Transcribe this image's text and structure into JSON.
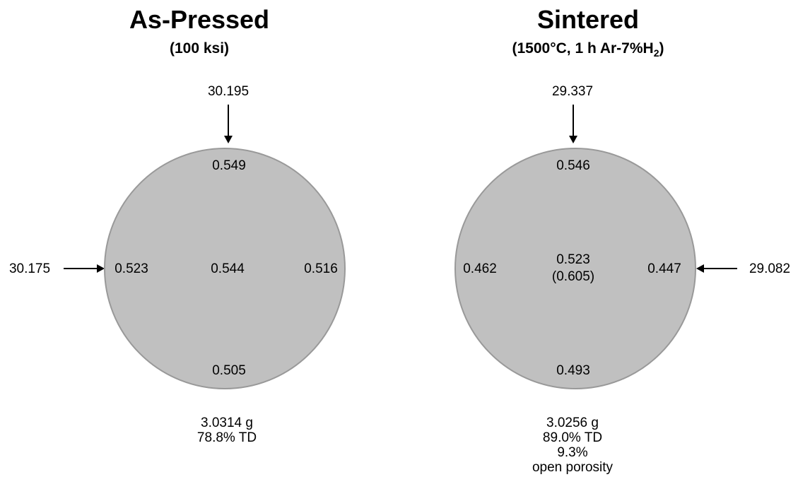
{
  "left": {
    "title": "As-Pressed",
    "subtitle": "(100 ksi)",
    "top_load": "30.195",
    "side_load": "30.175",
    "points": {
      "top": "0.549",
      "left": "0.523",
      "center": "0.544",
      "right": "0.516",
      "bottom": "0.505"
    },
    "notes": [
      "3.0314 g",
      "78.8% TD"
    ]
  },
  "right": {
    "title": "Sintered",
    "subtitle_main": "(1500°C, 1 h Ar-7%H",
    "subtitle_sub": "2",
    "subtitle_end": ")",
    "top_load": "29.337",
    "side_load": "29.082",
    "points": {
      "top": "0.546",
      "left": "0.462",
      "center": "0.523",
      "center_secondary": "(0.605)",
      "right": "0.447",
      "bottom": "0.493"
    },
    "notes": [
      "3.0256 g",
      "89.0% TD",
      "9.3%",
      "open porosity"
    ]
  },
  "colors": {
    "disk_fill": "#c0c0c0",
    "disk_edge": "#999999",
    "arrow": "#000000"
  }
}
